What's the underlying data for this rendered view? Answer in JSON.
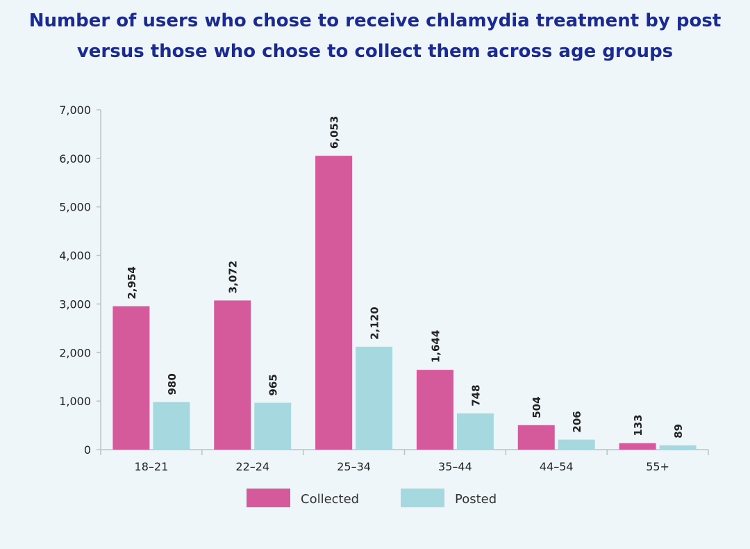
{
  "chart_data": {
    "type": "bar",
    "title": "Number of users who chose to receive chlamydia treatment by post versus those who chose to collect them across age groups",
    "categories": [
      "18–21",
      "22–24",
      "25–34",
      "35–44",
      "44–54",
      "55+"
    ],
    "series": [
      {
        "name": "Collected",
        "color": "#d45a9b",
        "values": [
          2954,
          3072,
          6053,
          1644,
          504,
          133
        ]
      },
      {
        "name": "Posted",
        "color": "#a6d9df",
        "values": [
          980,
          965,
          2120,
          748,
          206,
          89
        ]
      }
    ],
    "data_labels": [
      [
        "2,954",
        "3,072",
        "6,053",
        "1,644",
        "504",
        "133"
      ],
      [
        "980",
        "965",
        "2,120",
        "748",
        "206",
        "89"
      ]
    ],
    "y_ticks": [
      0,
      1000,
      2000,
      3000,
      4000,
      5000,
      6000,
      7000
    ],
    "y_tick_labels": [
      "0",
      "1,000",
      "2,000",
      "3,000",
      "4,000",
      "5,000",
      "6,000",
      "7,000"
    ],
    "ylim": [
      0,
      7000
    ],
    "xlabel": "",
    "ylabel": "",
    "grid": false,
    "legend_position": "bottom"
  }
}
